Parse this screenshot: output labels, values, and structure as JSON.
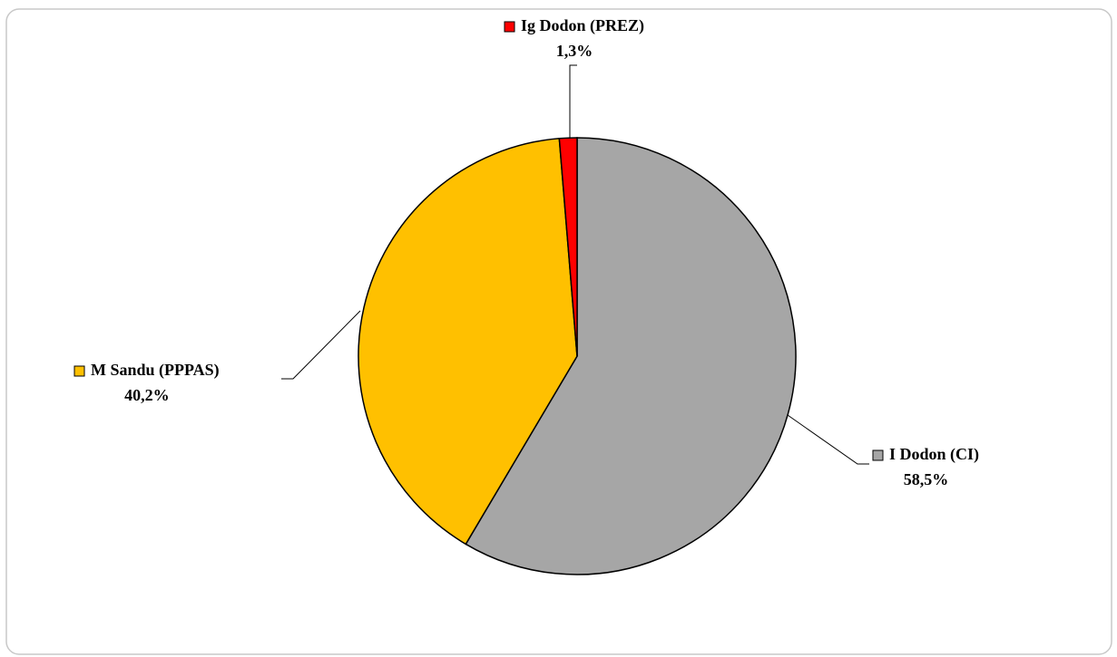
{
  "chart_data": {
    "type": "pie",
    "categories": [
      "I Dodon (CI)",
      "M Sandu (PPPAS)",
      "Ig Dodon (PREZ)"
    ],
    "values": [
      58.5,
      40.2,
      1.3
    ],
    "value_labels": [
      "58,5%",
      "40,2%",
      "1,3%"
    ],
    "colors": [
      "#a6a6a6",
      "#ffc000",
      "#ff0000"
    ]
  }
}
